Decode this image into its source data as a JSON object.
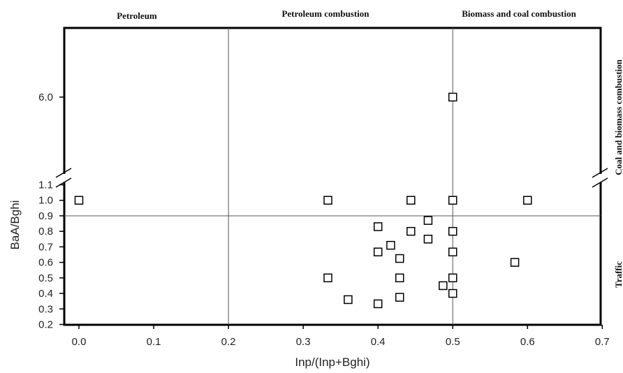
{
  "chart_data": {
    "type": "scatter",
    "xlabel": "Inp/(Inp+Bghi)",
    "ylabel": "BaA/Bghi",
    "xlim": [
      -0.05,
      0.7
    ],
    "ylim_lower": [
      0.2,
      1.1
    ],
    "ylim_upper_ticks": [
      6.0
    ],
    "y_axis_break": "between 1.1 and 6.0",
    "x_ticks": [
      "0.0",
      "0.1",
      "0.2",
      "0.3",
      "0.4",
      "0.5",
      "0.6",
      "0.7"
    ],
    "y_ticks": [
      "0.2",
      "0.3",
      "0.4",
      "0.5",
      "0.6",
      "0.7",
      "0.8",
      "0.9",
      "1.0",
      "1.1",
      "6.0"
    ],
    "threshold_lines": {
      "x": [
        0.2,
        0.5
      ],
      "y": [
        0.9
      ]
    },
    "top_region_labels": [
      "Petroleum",
      "Petroleum combustion",
      "Biomass and coal combustion"
    ],
    "right_region_labels": [
      "Coal and biomass combustion",
      "Traffic"
    ],
    "grid": false,
    "marker": "open-square",
    "points": [
      {
        "x": 0.0,
        "y": 1.0
      },
      {
        "x": 0.333,
        "y": 1.0
      },
      {
        "x": 0.444,
        "y": 1.0
      },
      {
        "x": 0.5,
        "y": 1.0
      },
      {
        "x": 0.6,
        "y": 1.0
      },
      {
        "x": 0.5,
        "y": 6.0
      },
      {
        "x": 0.4,
        "y": 0.83
      },
      {
        "x": 0.467,
        "y": 0.87
      },
      {
        "x": 0.444,
        "y": 0.8
      },
      {
        "x": 0.5,
        "y": 0.8
      },
      {
        "x": 0.417,
        "y": 0.71
      },
      {
        "x": 0.467,
        "y": 0.75
      },
      {
        "x": 0.4,
        "y": 0.667
      },
      {
        "x": 0.5,
        "y": 0.667
      },
      {
        "x": 0.429,
        "y": 0.625
      },
      {
        "x": 0.583,
        "y": 0.6
      },
      {
        "x": 0.333,
        "y": 0.5
      },
      {
        "x": 0.429,
        "y": 0.5
      },
      {
        "x": 0.5,
        "y": 0.5
      },
      {
        "x": 0.487,
        "y": 0.45
      },
      {
        "x": 0.5,
        "y": 0.4
      },
      {
        "x": 0.36,
        "y": 0.36
      },
      {
        "x": 0.429,
        "y": 0.375
      },
      {
        "x": 0.4,
        "y": 0.333
      }
    ]
  }
}
